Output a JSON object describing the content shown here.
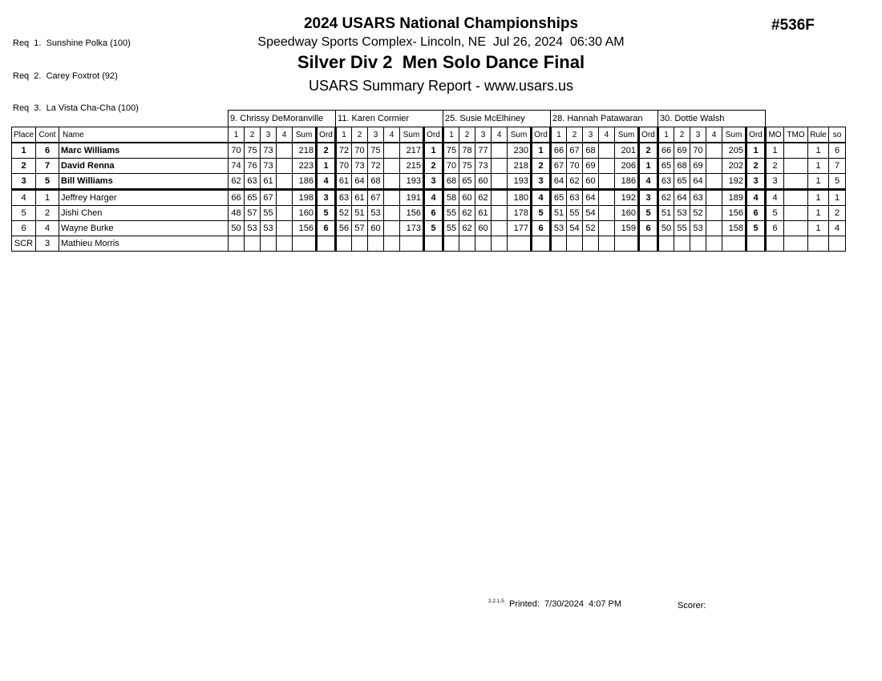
{
  "colors": {
    "text": "#000000",
    "background": "#ffffff",
    "border": "#000000"
  },
  "page": {
    "doc_number": "#536F",
    "requirements": [
      "Req  1.  Sunshine Polka (100)",
      "Req  2.  Carey Foxtrot (92)",
      "Req  3.  La Vista Cha-Cha (100)"
    ]
  },
  "header": {
    "title": "2024 USARS National Championships",
    "venue_line": "Speedway Sports Complex- Lincoln, NE  Jul 26, 2024  06:30 AM",
    "event_title": "Silver Div 2  Men Solo Dance Final",
    "report_line": "USARS Summary Report - www.usars.us"
  },
  "table": {
    "corner_headers": [
      "Place",
      "Cont",
      "Name"
    ],
    "judges": [
      "9.  Chrissy DeMoranville",
      "11.  Karen Cormier",
      "25.  Susie McElhiney",
      "28.  Hannah Patawaran",
      "30.  Dottie Walsh"
    ],
    "judge_sub_headers": [
      "1",
      "2",
      "3",
      "4",
      "Sum",
      "Ord"
    ],
    "tail_headers": [
      "MO",
      "TMO",
      "Rule",
      "so"
    ],
    "rows": [
      {
        "place": "1",
        "cont": "6",
        "name": "Marc Williams",
        "bold": true,
        "separator_below": false,
        "judge_scores": [
          {
            "marks": [
              "70",
              "75",
              "73",
              ""
            ],
            "sum": "218",
            "ord": "2"
          },
          {
            "marks": [
              "72",
              "70",
              "75",
              ""
            ],
            "sum": "217",
            "ord": "1"
          },
          {
            "marks": [
              "75",
              "78",
              "77",
              ""
            ],
            "sum": "230",
            "ord": "1"
          },
          {
            "marks": [
              "66",
              "67",
              "68",
              ""
            ],
            "sum": "201",
            "ord": "2"
          },
          {
            "marks": [
              "66",
              "69",
              "70",
              ""
            ],
            "sum": "205",
            "ord": "1"
          }
        ],
        "mo": "1",
        "tmo": "",
        "rule": "1",
        "so": "6"
      },
      {
        "place": "2",
        "cont": "7",
        "name": "David Renna",
        "bold": true,
        "separator_below": false,
        "judge_scores": [
          {
            "marks": [
              "74",
              "76",
              "73",
              ""
            ],
            "sum": "223",
            "ord": "1"
          },
          {
            "marks": [
              "70",
              "73",
              "72",
              ""
            ],
            "sum": "215",
            "ord": "2"
          },
          {
            "marks": [
              "70",
              "75",
              "73",
              ""
            ],
            "sum": "218",
            "ord": "2"
          },
          {
            "marks": [
              "67",
              "70",
              "69",
              ""
            ],
            "sum": "206",
            "ord": "1"
          },
          {
            "marks": [
              "65",
              "68",
              "69",
              ""
            ],
            "sum": "202",
            "ord": "2"
          }
        ],
        "mo": "2",
        "tmo": "",
        "rule": "1",
        "so": "7"
      },
      {
        "place": "3",
        "cont": "5",
        "name": "Bill Williams",
        "bold": true,
        "separator_below": true,
        "judge_scores": [
          {
            "marks": [
              "62",
              "63",
              "61",
              ""
            ],
            "sum": "186",
            "ord": "4"
          },
          {
            "marks": [
              "61",
              "64",
              "68",
              ""
            ],
            "sum": "193",
            "ord": "3"
          },
          {
            "marks": [
              "68",
              "65",
              "60",
              ""
            ],
            "sum": "193",
            "ord": "3"
          },
          {
            "marks": [
              "64",
              "62",
              "60",
              ""
            ],
            "sum": "186",
            "ord": "4"
          },
          {
            "marks": [
              "63",
              "65",
              "64",
              ""
            ],
            "sum": "192",
            "ord": "3"
          }
        ],
        "mo": "3",
        "tmo": "",
        "rule": "1",
        "so": "5"
      },
      {
        "place": "4",
        "cont": "1",
        "name": "Jeffrey Harger",
        "bold": false,
        "separator_below": false,
        "judge_scores": [
          {
            "marks": [
              "66",
              "65",
              "67",
              ""
            ],
            "sum": "198",
            "ord": "3"
          },
          {
            "marks": [
              "63",
              "61",
              "67",
              ""
            ],
            "sum": "191",
            "ord": "4"
          },
          {
            "marks": [
              "58",
              "60",
              "62",
              ""
            ],
            "sum": "180",
            "ord": "4"
          },
          {
            "marks": [
              "65",
              "63",
              "64",
              ""
            ],
            "sum": "192",
            "ord": "3"
          },
          {
            "marks": [
              "62",
              "64",
              "63",
              ""
            ],
            "sum": "189",
            "ord": "4"
          }
        ],
        "mo": "4",
        "tmo": "",
        "rule": "1",
        "so": "1"
      },
      {
        "place": "5",
        "cont": "2",
        "name": "Jishi Chen",
        "bold": false,
        "separator_below": false,
        "judge_scores": [
          {
            "marks": [
              "48",
              "57",
              "55",
              ""
            ],
            "sum": "160",
            "ord": "5"
          },
          {
            "marks": [
              "52",
              "51",
              "53",
              ""
            ],
            "sum": "156",
            "ord": "6"
          },
          {
            "marks": [
              "55",
              "62",
              "61",
              ""
            ],
            "sum": "178",
            "ord": "5"
          },
          {
            "marks": [
              "51",
              "55",
              "54",
              ""
            ],
            "sum": "160",
            "ord": "5"
          },
          {
            "marks": [
              "51",
              "53",
              "52",
              ""
            ],
            "sum": "156",
            "ord": "6"
          }
        ],
        "mo": "5",
        "tmo": "",
        "rule": "1",
        "so": "2"
      },
      {
        "place": "6",
        "cont": "4",
        "name": "Wayne Burke",
        "bold": false,
        "separator_below": false,
        "judge_scores": [
          {
            "marks": [
              "50",
              "53",
              "53",
              ""
            ],
            "sum": "156",
            "ord": "6"
          },
          {
            "marks": [
              "56",
              "57",
              "60",
              ""
            ],
            "sum": "173",
            "ord": "5"
          },
          {
            "marks": [
              "55",
              "62",
              "60",
              ""
            ],
            "sum": "177",
            "ord": "6"
          },
          {
            "marks": [
              "53",
              "54",
              "52",
              ""
            ],
            "sum": "159",
            "ord": "6"
          },
          {
            "marks": [
              "50",
              "55",
              "53",
              ""
            ],
            "sum": "158",
            "ord": "5"
          }
        ],
        "mo": "6",
        "tmo": "",
        "rule": "1",
        "so": "4"
      },
      {
        "place": "SCR",
        "cont": "3",
        "name": "Mathieu Morris",
        "bold": false,
        "separator_below": false,
        "judge_scores": [
          {
            "marks": [
              "",
              "",
              "",
              ""
            ],
            "sum": "",
            "ord": ""
          },
          {
            "marks": [
              "",
              "",
              "",
              ""
            ],
            "sum": "",
            "ord": ""
          },
          {
            "marks": [
              "",
              "",
              "",
              ""
            ],
            "sum": "",
            "ord": ""
          },
          {
            "marks": [
              "",
              "",
              "",
              ""
            ],
            "sum": "",
            "ord": ""
          },
          {
            "marks": [
              "",
              "",
              "",
              ""
            ],
            "sum": "",
            "ord": ""
          }
        ],
        "mo": "",
        "tmo": "",
        "rule": "",
        "so": ""
      }
    ]
  },
  "footer": {
    "version": "2.2.1.5",
    "printed_label": "  Printed:  7/30/2024  4:07 PM",
    "scorer_label": "Scorer:"
  }
}
